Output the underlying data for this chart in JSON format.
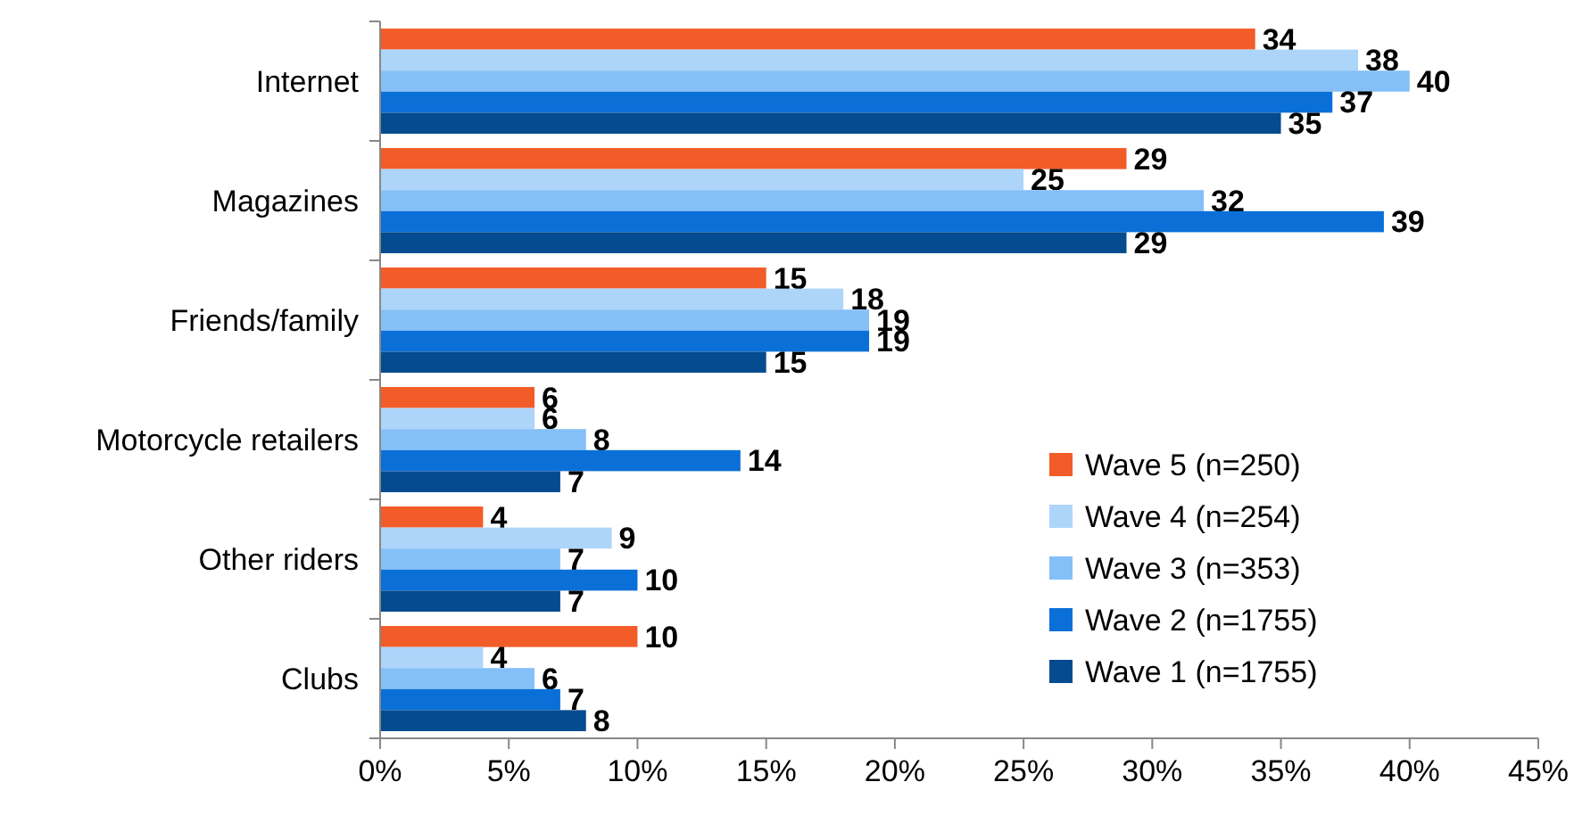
{
  "chart_data": {
    "type": "bar",
    "orientation": "horizontal",
    "categories": [
      "Internet",
      "Magazines",
      "Friends/family",
      "Motorcycle retailers",
      "Other riders",
      "Clubs"
    ],
    "series": [
      {
        "name": "Wave 5 (n=250)",
        "color": "#f25c28",
        "values": [
          34,
          29,
          15,
          6,
          4,
          10
        ]
      },
      {
        "name": "Wave 4 (n=254)",
        "color": "#add5fa",
        "values": [
          38,
          25,
          18,
          6,
          9,
          4
        ]
      },
      {
        "name": "Wave 3 (n=353)",
        "color": "#85bff7",
        "values": [
          40,
          32,
          19,
          8,
          7,
          6
        ]
      },
      {
        "name": "Wave 2 (n=1755)",
        "color": "#0a70d8",
        "values": [
          37,
          39,
          19,
          14,
          10,
          7
        ]
      },
      {
        "name": "Wave 1 (n=1755)",
        "color": "#054b8f",
        "values": [
          35,
          29,
          15,
          7,
          7,
          8
        ]
      }
    ],
    "xlim": [
      0,
      45
    ],
    "xticks": [
      {
        "value": 0,
        "label": "0%"
      },
      {
        "value": 5,
        "label": "5%"
      },
      {
        "value": 10,
        "label": "10%"
      },
      {
        "value": 15,
        "label": "15%"
      },
      {
        "value": 20,
        "label": "20%"
      },
      {
        "value": 25,
        "label": "25%"
      },
      {
        "value": 30,
        "label": "30%"
      },
      {
        "value": 35,
        "label": "35%"
      },
      {
        "value": 40,
        "label": "40%"
      },
      {
        "value": 45,
        "label": "45%"
      }
    ],
    "data_labels": true,
    "legend": "bottom right",
    "grid": false
  }
}
